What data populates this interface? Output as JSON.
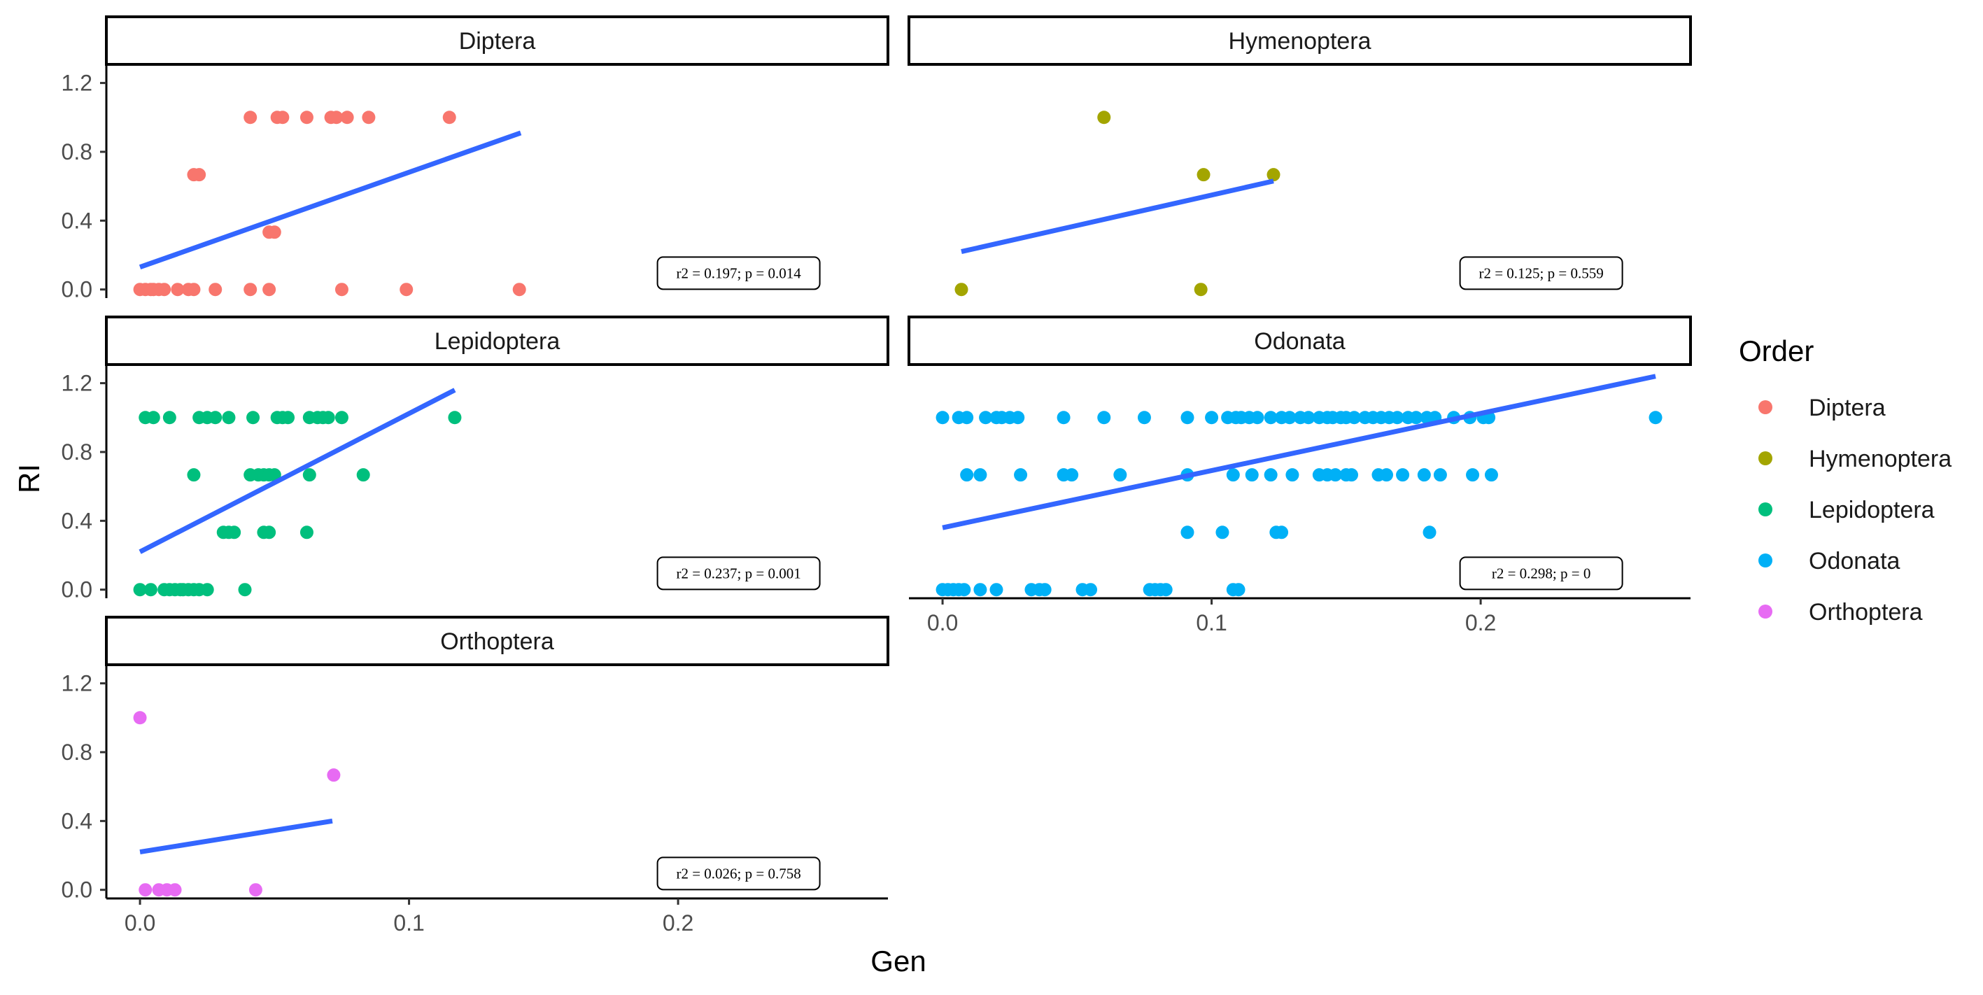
{
  "colors": {
    "Diptera": "#F8766D",
    "Hymenoptera": "#A3A500",
    "Lepidoptera": "#00BF7D",
    "Odonata": "#00B0F6",
    "Orthoptera": "#E76BF3",
    "trend": "#3366FF",
    "axis": "#000000",
    "tick_text": "#4d4d4d"
  },
  "chart_data": {
    "type": "scatter",
    "facet_by": "Order",
    "xlabel": "Gen",
    "ylabel": "RI",
    "x_ticks": [
      "0.0",
      "0.1",
      "0.2"
    ],
    "y_ticks": [
      "0.0",
      "0.4",
      "0.8",
      "1.2"
    ],
    "x_tick_values": [
      0.0,
      0.1,
      0.2
    ],
    "y_tick_values": [
      0.0,
      0.4,
      0.8,
      1.2
    ],
    "xlim": [
      -0.0125,
      0.278
    ],
    "ylim": [
      -0.05,
      1.3
    ],
    "grid": false,
    "legend": {
      "title": "Order",
      "position": "right",
      "entries": [
        "Diptera",
        "Hymenoptera",
        "Lepidoptera",
        "Odonata",
        "Orthoptera"
      ]
    },
    "panels": [
      {
        "name": "Diptera",
        "annotation": "r2 = 0.197; p = 0.014",
        "trend": {
          "x": [
            0.0,
            0.1415
          ],
          "y": [
            0.13,
            0.91
          ]
        },
        "points": [
          [
            0.0,
            0.0
          ],
          [
            0.002,
            0.0
          ],
          [
            0.004,
            0.0
          ],
          [
            0.005,
            0.0
          ],
          [
            0.007,
            0.0
          ],
          [
            0.009,
            0.0
          ],
          [
            0.014,
            0.0
          ],
          [
            0.018,
            0.0
          ],
          [
            0.02,
            0.0
          ],
          [
            0.028,
            0.0
          ],
          [
            0.041,
            0.0
          ],
          [
            0.048,
            0.0
          ],
          [
            0.075,
            0.0
          ],
          [
            0.099,
            0.0
          ],
          [
            0.141,
            0.0
          ],
          [
            0.02,
            0.667
          ],
          [
            0.022,
            0.667
          ],
          [
            0.048,
            0.333
          ],
          [
            0.05,
            0.333
          ],
          [
            0.041,
            1.0
          ],
          [
            0.051,
            1.0
          ],
          [
            0.053,
            1.0
          ],
          [
            0.062,
            1.0
          ],
          [
            0.071,
            1.0
          ],
          [
            0.073,
            1.0
          ],
          [
            0.077,
            1.0
          ],
          [
            0.085,
            1.0
          ],
          [
            0.115,
            1.0
          ]
        ]
      },
      {
        "name": "Hymenoptera",
        "annotation": "r2 = 0.125; p = 0.559",
        "trend": {
          "x": [
            0.007,
            0.123
          ],
          "y": [
            0.22,
            0.63
          ]
        },
        "points": [
          [
            0.007,
            0.0
          ],
          [
            0.096,
            0.0
          ],
          [
            0.097,
            0.667
          ],
          [
            0.123,
            0.667
          ],
          [
            0.06,
            1.0
          ]
        ]
      },
      {
        "name": "Lepidoptera",
        "annotation": "r2 = 0.237; p = 0.001",
        "trend": {
          "x": [
            0.0,
            0.117
          ],
          "y": [
            0.22,
            1.16
          ]
        },
        "points": [
          [
            0.0,
            0.0
          ],
          [
            0.004,
            0.0
          ],
          [
            0.009,
            0.0
          ],
          [
            0.011,
            0.0
          ],
          [
            0.013,
            0.0
          ],
          [
            0.015,
            0.0
          ],
          [
            0.016,
            0.0
          ],
          [
            0.018,
            0.0
          ],
          [
            0.02,
            0.0
          ],
          [
            0.022,
            0.0
          ],
          [
            0.025,
            0.0
          ],
          [
            0.039,
            0.0
          ],
          [
            0.02,
            0.667
          ],
          [
            0.041,
            0.667
          ],
          [
            0.044,
            0.667
          ],
          [
            0.046,
            0.667
          ],
          [
            0.048,
            0.667
          ],
          [
            0.05,
            0.667
          ],
          [
            0.063,
            0.667
          ],
          [
            0.083,
            0.667
          ],
          [
            0.031,
            0.333
          ],
          [
            0.033,
            0.333
          ],
          [
            0.035,
            0.333
          ],
          [
            0.046,
            0.333
          ],
          [
            0.048,
            0.333
          ],
          [
            0.062,
            0.333
          ],
          [
            0.002,
            1.0
          ],
          [
            0.005,
            1.0
          ],
          [
            0.011,
            1.0
          ],
          [
            0.022,
            1.0
          ],
          [
            0.025,
            1.0
          ],
          [
            0.028,
            1.0
          ],
          [
            0.033,
            1.0
          ],
          [
            0.042,
            1.0
          ],
          [
            0.051,
            1.0
          ],
          [
            0.053,
            1.0
          ],
          [
            0.055,
            1.0
          ],
          [
            0.063,
            1.0
          ],
          [
            0.066,
            1.0
          ],
          [
            0.068,
            1.0
          ],
          [
            0.07,
            1.0
          ],
          [
            0.075,
            1.0
          ],
          [
            0.117,
            1.0
          ]
        ]
      },
      {
        "name": "Odonata",
        "annotation": "r2 = 0.298; p = 0",
        "trend": {
          "x": [
            0.0,
            0.265
          ],
          "y": [
            0.36,
            1.24
          ]
        },
        "points": [
          [
            0.0,
            0.0
          ],
          [
            0.002,
            0.0
          ],
          [
            0.004,
            0.0
          ],
          [
            0.006,
            0.0
          ],
          [
            0.008,
            0.0
          ],
          [
            0.014,
            0.0
          ],
          [
            0.02,
            0.0
          ],
          [
            0.033,
            0.0
          ],
          [
            0.036,
            0.0
          ],
          [
            0.038,
            0.0
          ],
          [
            0.052,
            0.0
          ],
          [
            0.055,
            0.0
          ],
          [
            0.077,
            0.0
          ],
          [
            0.079,
            0.0
          ],
          [
            0.081,
            0.0
          ],
          [
            0.083,
            0.0
          ],
          [
            0.108,
            0.0
          ],
          [
            0.11,
            0.0
          ],
          [
            0.091,
            0.333
          ],
          [
            0.104,
            0.333
          ],
          [
            0.124,
            0.333
          ],
          [
            0.126,
            0.333
          ],
          [
            0.181,
            0.333
          ],
          [
            0.009,
            0.667
          ],
          [
            0.014,
            0.667
          ],
          [
            0.029,
            0.667
          ],
          [
            0.045,
            0.667
          ],
          [
            0.048,
            0.667
          ],
          [
            0.066,
            0.667
          ],
          [
            0.091,
            0.667
          ],
          [
            0.108,
            0.667
          ],
          [
            0.115,
            0.667
          ],
          [
            0.122,
            0.667
          ],
          [
            0.13,
            0.667
          ],
          [
            0.14,
            0.667
          ],
          [
            0.143,
            0.667
          ],
          [
            0.146,
            0.667
          ],
          [
            0.15,
            0.667
          ],
          [
            0.152,
            0.667
          ],
          [
            0.162,
            0.667
          ],
          [
            0.165,
            0.667
          ],
          [
            0.171,
            0.667
          ],
          [
            0.179,
            0.667
          ],
          [
            0.185,
            0.667
          ],
          [
            0.197,
            0.667
          ],
          [
            0.204,
            0.667
          ],
          [
            0.0,
            1.0
          ],
          [
            0.006,
            1.0
          ],
          [
            0.009,
            1.0
          ],
          [
            0.016,
            1.0
          ],
          [
            0.02,
            1.0
          ],
          [
            0.022,
            1.0
          ],
          [
            0.025,
            1.0
          ],
          [
            0.028,
            1.0
          ],
          [
            0.045,
            1.0
          ],
          [
            0.06,
            1.0
          ],
          [
            0.075,
            1.0
          ],
          [
            0.091,
            1.0
          ],
          [
            0.1,
            1.0
          ],
          [
            0.106,
            1.0
          ],
          [
            0.109,
            1.0
          ],
          [
            0.111,
            1.0
          ],
          [
            0.114,
            1.0
          ],
          [
            0.117,
            1.0
          ],
          [
            0.122,
            1.0
          ],
          [
            0.126,
            1.0
          ],
          [
            0.129,
            1.0
          ],
          [
            0.133,
            1.0
          ],
          [
            0.136,
            1.0
          ],
          [
            0.14,
            1.0
          ],
          [
            0.143,
            1.0
          ],
          [
            0.145,
            1.0
          ],
          [
            0.148,
            1.0
          ],
          [
            0.15,
            1.0
          ],
          [
            0.153,
            1.0
          ],
          [
            0.157,
            1.0
          ],
          [
            0.16,
            1.0
          ],
          [
            0.163,
            1.0
          ],
          [
            0.166,
            1.0
          ],
          [
            0.169,
            1.0
          ],
          [
            0.173,
            1.0
          ],
          [
            0.176,
            1.0
          ],
          [
            0.18,
            1.0
          ],
          [
            0.183,
            1.0
          ],
          [
            0.19,
            1.0
          ],
          [
            0.196,
            1.0
          ],
          [
            0.201,
            1.0
          ],
          [
            0.203,
            1.0
          ],
          [
            0.265,
            1.0
          ]
        ]
      },
      {
        "name": "Orthoptera",
        "annotation": "r2 = 0.026; p = 0.758",
        "trend": {
          "x": [
            0.0,
            0.0715
          ],
          "y": [
            0.22,
            0.4
          ]
        },
        "points": [
          [
            0.002,
            0.0
          ],
          [
            0.007,
            0.0
          ],
          [
            0.01,
            0.0
          ],
          [
            0.013,
            0.0
          ],
          [
            0.043,
            0.0
          ],
          [
            0.072,
            0.667
          ],
          [
            0.0,
            1.0
          ]
        ]
      }
    ]
  }
}
